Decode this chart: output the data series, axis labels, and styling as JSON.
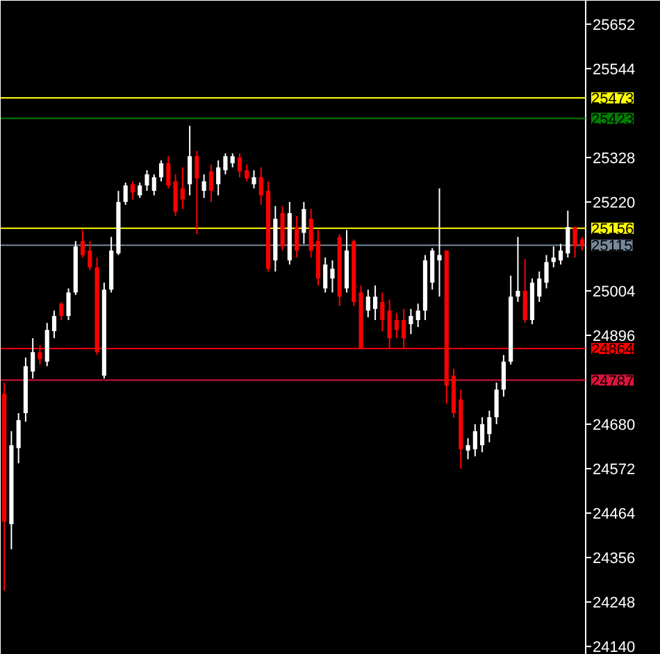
{
  "chart_data": {
    "type": "candlestick",
    "categories": [
      null,
      null,
      null,
      null,
      null,
      null,
      null,
      null,
      null,
      null,
      null,
      null,
      null,
      null,
      null,
      null,
      null,
      null,
      null,
      null,
      null,
      null,
      null,
      null,
      null,
      null,
      null,
      null,
      null,
      null,
      null,
      null,
      null,
      null,
      null,
      null,
      null,
      null,
      null,
      null,
      null,
      null,
      null,
      null,
      null,
      null,
      null,
      null,
      null,
      null,
      null,
      null,
      null,
      null,
      null,
      null,
      null,
      null,
      null,
      null,
      null,
      null,
      null,
      null,
      null,
      null,
      null,
      null,
      null,
      null,
      null,
      null,
      null,
      null,
      null,
      null,
      null,
      null,
      null,
      null,
      null,
      null
    ],
    "ohlc": [
      [
        24754,
        24781,
        24275,
        24443
      ],
      [
        24437,
        24663,
        24376,
        24629
      ],
      [
        24622,
        24707,
        24585,
        24690
      ],
      [
        24707,
        24842,
        24686,
        24821
      ],
      [
        24808,
        24889,
        24791,
        24855
      ],
      [
        24855,
        24872,
        24825,
        24838
      ],
      [
        24832,
        24926,
        24821,
        24909
      ],
      [
        24906,
        24956,
        24889,
        24943
      ],
      [
        24973,
        24977,
        24933,
        24943
      ],
      [
        24943,
        25010,
        24933,
        25000
      ],
      [
        25000,
        25125,
        24994,
        25112
      ],
      [
        25125,
        25152,
        25085,
        25091
      ],
      [
        25102,
        25125,
        25054,
        25061
      ],
      [
        25061,
        25085,
        24848,
        24855
      ],
      [
        24798,
        25024,
        24791,
        25007
      ],
      [
        25007,
        25135,
        25000,
        25102
      ],
      [
        25095,
        25247,
        25091,
        25220
      ],
      [
        25220,
        25267,
        25213,
        25260
      ],
      [
        25263,
        25270,
        25226,
        25243
      ],
      [
        25236,
        25267,
        25230,
        25260
      ],
      [
        25260,
        25297,
        25247,
        25287
      ],
      [
        25247,
        25287,
        25236,
        25280
      ],
      [
        25280,
        25321,
        25270,
        25314
      ],
      [
        25314,
        25331,
        25253,
        25260
      ],
      [
        25270,
        25287,
        25186,
        25196
      ],
      [
        25253,
        25304,
        25203,
        25226
      ],
      [
        25263,
        25405,
        25236,
        25331
      ],
      [
        25331,
        25344,
        25142,
        25277
      ],
      [
        25247,
        25287,
        25230,
        25270
      ],
      [
        25294,
        25311,
        25220,
        25247
      ],
      [
        25263,
        25321,
        25236,
        25304
      ],
      [
        25297,
        25338,
        25287,
        25331
      ],
      [
        25314,
        25338,
        25304,
        25331
      ],
      [
        25328,
        25338,
        25280,
        25294
      ],
      [
        25297,
        25311,
        25270,
        25277
      ],
      [
        25263,
        25297,
        25253,
        25280
      ],
      [
        25280,
        25304,
        25213,
        25236
      ],
      [
        25247,
        25270,
        25051,
        25058
      ],
      [
        25078,
        25210,
        25051,
        25179
      ],
      [
        25193,
        25210,
        25102,
        25112
      ],
      [
        25078,
        25220,
        25068,
        25193
      ],
      [
        25159,
        25186,
        25085,
        25102
      ],
      [
        25145,
        25220,
        25118,
        25203
      ],
      [
        25179,
        25203,
        25085,
        25102
      ],
      [
        25125,
        25152,
        25017,
        25034
      ],
      [
        25010,
        25085,
        25000,
        25068
      ],
      [
        25034,
        25078,
        25000,
        25058
      ],
      [
        25135,
        25142,
        24967,
        24990
      ],
      [
        25010,
        25152,
        25000,
        25102
      ],
      [
        25125,
        25129,
        24967,
        24977
      ],
      [
        25000,
        25017,
        24865,
        24865
      ],
      [
        24956,
        25007,
        24940,
        24990
      ],
      [
        24960,
        25017,
        24933,
        24990
      ],
      [
        24977,
        25000,
        24906,
        24933
      ],
      [
        24956,
        24983,
        24865,
        24889
      ],
      [
        24933,
        24950,
        24889,
        24909
      ],
      [
        24933,
        24960,
        24865,
        24889
      ],
      [
        24923,
        24960,
        24899,
        24943
      ],
      [
        24933,
        24973,
        24916,
        24956
      ],
      [
        24956,
        25091,
        24933,
        25078
      ],
      [
        25024,
        25108,
        25007,
        25102
      ],
      [
        25078,
        25253,
        24990,
        25091
      ],
      [
        25102,
        25102,
        24730,
        24774
      ],
      [
        24798,
        24815,
        24696,
        24707
      ],
      [
        24740,
        24764,
        24572,
        24619
      ],
      [
        24616,
        24646,
        24595,
        24629
      ],
      [
        24619,
        24680,
        24602,
        24663
      ],
      [
        24629,
        24697,
        24612,
        24680
      ],
      [
        24656,
        24713,
        24636,
        24697
      ],
      [
        24697,
        24781,
        24680,
        24764
      ],
      [
        24764,
        24848,
        24747,
        24832
      ],
      [
        24832,
        25041,
        24825,
        24990
      ],
      [
        24990,
        25135,
        24977,
        25004
      ],
      [
        25004,
        25081,
        24926,
        24933
      ],
      [
        24933,
        25034,
        24923,
        25024
      ],
      [
        24990,
        25051,
        24977,
        25034
      ],
      [
        25024,
        25091,
        25010,
        25074
      ],
      [
        25074,
        25112,
        25061,
        25085
      ],
      [
        25078,
        25118,
        25068,
        25102
      ],
      [
        25095,
        25199,
        25085,
        25159
      ],
      [
        25159,
        25159,
        25085,
        25112
      ],
      [
        25129,
        25135,
        25102,
        25112
      ]
    ],
    "ylim": [
      24120,
      25709
    ],
    "yticks": [
      25652,
      25544,
      25328,
      25220,
      25004,
      24896,
      24680,
      24572,
      24464,
      24356,
      24248,
      24140
    ],
    "ref_lines": [
      {
        "axis": "y",
        "value": 25473,
        "label": "25473",
        "color": "#ffff00"
      },
      {
        "axis": "y",
        "value": 25423,
        "label": "25423",
        "color": "#008000"
      },
      {
        "axis": "y",
        "value": 25156,
        "label": "25156",
        "color": "#ffff00"
      },
      {
        "axis": "y",
        "value": 25115,
        "label": "25115",
        "color": "#778899"
      },
      {
        "axis": "y",
        "value": 24864,
        "label": "24864",
        "color": "#ff0000"
      },
      {
        "axis": "y",
        "value": 24787,
        "label": "24787",
        "color": "#dc143c"
      }
    ]
  }
}
